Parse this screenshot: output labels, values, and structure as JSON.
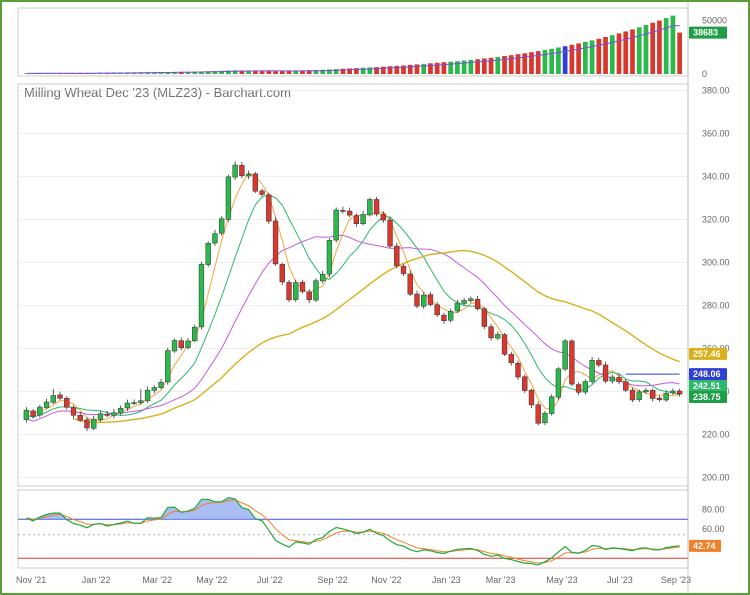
{
  "chart_data": {
    "type": "candlestick",
    "title": "Milling Wheat Dec '23 (MLZ23) - Barchart.com",
    "x_labels": [
      "Nov '21",
      "Jan '22",
      "Mar '22",
      "May '22",
      "Jul '22",
      "Sep '22",
      "Nov '22",
      "Jan '23",
      "Mar '23",
      "May '23",
      "Jul '23",
      "Sep '23"
    ],
    "price_axis": {
      "ylim": [
        196,
        383
      ],
      "ticks": [
        "200.00",
        "220.00",
        "240.00",
        "260.00",
        "280.00",
        "300.00",
        "320.00",
        "340.00",
        "360.00",
        "380.00"
      ]
    },
    "volume_axis": {
      "ylim": [
        0,
        58000
      ],
      "ticks": [
        "0",
        "50000"
      ]
    },
    "oscillator_axis": {
      "ylim": [
        20,
        100
      ],
      "ticks": [
        "80.00",
        "60.00"
      ],
      "upper_level": 70,
      "lower_level": 30
    },
    "weeks": 98,
    "candles": {
      "open": [
        226.9,
        230.9,
        229.0,
        232.5,
        234.9,
        238.4,
        236.8,
        232.4,
        228.9,
        226.8,
        222.8,
        226.9,
        229.3,
        228.8,
        229.9,
        232.3,
        234.6,
        234.8,
        235.6,
        240.5,
        241.7,
        244.4,
        258.8,
        263.6,
        260.4,
        263.6,
        270.0,
        299.0,
        309.0,
        313.6,
        320.0,
        339.7,
        345.2,
        340.2,
        341.2,
        333.3,
        331.4,
        319.3,
        299.1,
        290.7,
        282.7,
        290.8,
        286.3,
        282.5,
        291.4,
        294.6,
        310.4,
        324.2,
        323.9,
        321.8,
        318.0,
        322.1,
        329.3,
        322.5,
        319.7,
        307.6,
        298.3,
        294.6,
        285.3,
        279.6,
        285.0,
        280.3,
        275.5,
        273.1,
        277.4,
        280.9,
        282.2,
        282.9,
        278.4,
        270.1,
        264.8,
        266.4,
        257.2,
        253.1,
        246.8,
        240.6,
        233.8,
        225.4,
        229.7,
        237.3,
        250.4,
        263.5,
        243.2,
        239.7,
        244.6,
        254.4,
        252.3,
        244.8,
        246.5,
        244.5,
        240.6,
        236.1,
        239.8,
        240.5,
        236.9,
        236.0,
        239.3,
        240.2
      ],
      "close": [
        231.3,
        228.5,
        232.7,
        235.1,
        238.1,
        236.8,
        232.6,
        228.9,
        226.6,
        223.0,
        227.1,
        229.6,
        229.2,
        230.1,
        232.2,
        234.6,
        234.8,
        235.7,
        240.6,
        241.8,
        244.3,
        259.0,
        263.7,
        260.3,
        263.5,
        269.9,
        299.1,
        308.9,
        313.4,
        320.3,
        339.8,
        345.3,
        340.3,
        341.1,
        333.1,
        331.6,
        319.2,
        299.3,
        290.9,
        282.6,
        290.6,
        286.5,
        282.6,
        291.5,
        294.5,
        310.3,
        324.4,
        323.8,
        322.0,
        318.0,
        322.3,
        329.3,
        322.5,
        319.7,
        307.6,
        298.4,
        294.8,
        285.2,
        279.7,
        284.8,
        280.4,
        275.6,
        272.9,
        277.3,
        281.1,
        282.3,
        283.1,
        278.4,
        270.2,
        264.9,
        266.5,
        257.3,
        253.3,
        246.7,
        240.4,
        233.7,
        225.2,
        229.9,
        237.5,
        250.5,
        263.5,
        243.4,
        239.6,
        244.6,
        254.5,
        252.3,
        244.8,
        246.7,
        244.5,
        240.5,
        236.0,
        239.8,
        240.6,
        236.7,
        236.1,
        239.2,
        240.2,
        238.75
      ],
      "high": [
        232.7,
        231.8,
        233.7,
        236.6,
        241.2,
        239.9,
        237.8,
        233.6,
        230.5,
        227.9,
        228.7,
        231.1,
        230.9,
        231.8,
        233.5,
        236.2,
        236.3,
        241.1,
        242.3,
        242.9,
        245.9,
        260.4,
        264.7,
        265.0,
        264.8,
        271.1,
        300.3,
        309.9,
        315.2,
        321.4,
        340.8,
        347.0,
        346.7,
        342.7,
        342.1,
        334.3,
        332.5,
        321.0,
        299.9,
        291.8,
        292.0,
        291.9,
        287.6,
        292.7,
        296.1,
        311.3,
        325.6,
        325.9,
        325.5,
        322.7,
        323.9,
        330.1,
        330.5,
        323.8,
        321.3,
        309.1,
        299.2,
        296.1,
        286.8,
        286.1,
        286.3,
        281.6,
        276.6,
        278.5,
        282.6,
        283.5,
        284.2,
        284.4,
        279.3,
        271.5,
        267.9,
        267.2,
        258.4,
        254.4,
        247.9,
        241.3,
        235.3,
        230.9,
        238.7,
        251.3,
        264.4,
        264.3,
        244.3,
        245.6,
        256.0,
        255.6,
        253.9,
        247.9,
        248.2,
        245.9,
        241.7,
        240.9,
        241.6,
        241.4,
        238.1,
        240.4,
        241.4,
        241.2
      ],
      "low": [
        225.5,
        227.4,
        227.9,
        231.7,
        234.1,
        235.9,
        231.6,
        227.3,
        225.9,
        221.5,
        221.9,
        225.9,
        228.1,
        227.5,
        229.0,
        231.0,
        233.7,
        233.7,
        234.6,
        239.1,
        241.1,
        243.1,
        257.9,
        259.0,
        259.5,
        262.9,
        268.8,
        297.9,
        307.8,
        312.5,
        318.9,
        338.4,
        339.2,
        338.8,
        332.3,
        330.7,
        318.0,
        298.4,
        289.6,
        281.6,
        281.6,
        285.5,
        281.1,
        281.6,
        290.2,
        293.1,
        309.2,
        322.8,
        321.1,
        316.5,
        317.2,
        321.4,
        321.4,
        318.4,
        306.6,
        297.3,
        293.7,
        284.4,
        278.6,
        278.4,
        279.6,
        274.7,
        271.4,
        272.1,
        276.4,
        279.9,
        281.1,
        277.6,
        269.0,
        263.6,
        263.8,
        256.5,
        252.0,
        245.4,
        239.3,
        232.2,
        224.3,
        224.4,
        228.8,
        236.1,
        249.4,
        242.4,
        238.3,
        238.6,
        243.6,
        251.3,
        243.8,
        243.6,
        243.4,
        239.7,
        235.0,
        235.1,
        238.9,
        235.3,
        235.2,
        235.2,
        238.4,
        237.6
      ]
    },
    "volume": [
      600,
      550,
      700,
      650,
      800,
      750,
      900,
      850,
      700,
      1000,
      950,
      1100,
      1000,
      1200,
      1300,
      1250,
      1400,
      1500,
      1600,
      1550,
      1700,
      1800,
      1900,
      2000,
      2100,
      2200,
      2400,
      2600,
      2800,
      3000,
      3300,
      3500,
      3200,
      3000,
      2800,
      2700,
      2600,
      2500,
      2700,
      2900,
      3100,
      3300,
      3500,
      3800,
      4000,
      4300,
      4600,
      4900,
      5200,
      5500,
      5800,
      6100,
      6400,
      6800,
      7200,
      7600,
      8000,
      8500,
      9000,
      9500,
      10000,
      10500,
      11000,
      11500,
      12000,
      12600,
      13200,
      13800,
      14500,
      15200,
      16000,
      16800,
      17600,
      18500,
      19400,
      20400,
      21400,
      22500,
      23600,
      24800,
      26000,
      27300,
      28600,
      30000,
      31500,
      33000,
      34600,
      36300,
      38000,
      39800,
      41700,
      43700,
      45800,
      47900,
      50000,
      52300,
      54600,
      38683
    ],
    "moving_averages": [
      {
        "color": "#f5a442",
        "last": 238.75
      },
      {
        "color": "#2ab86a",
        "last": 242.51
      },
      {
        "color": "#c65be0",
        "last": 248.06
      },
      {
        "color": "#d8b01a",
        "last": 257.46
      }
    ],
    "oscillator": [
      71.4,
      68.3,
      72.2,
      74.9,
      76.3,
      76.3,
      69.6,
      65.5,
      64.0,
      61.3,
      64.8,
      65.6,
      63.0,
      64.7,
      66.2,
      68.0,
      65.8,
      65.8,
      71.6,
      71.1,
      71.7,
      82.2,
      82.5,
      77.0,
      78.4,
      81.2,
      90.5,
      90.5,
      87.9,
      88.0,
      92.2,
      90.7,
      82.0,
      80.0,
      70.7,
      68.4,
      58.8,
      48.3,
      44.5,
      41.3,
      46.8,
      45.7,
      44.4,
      49.3,
      51.1,
      57.4,
      61.5,
      60.1,
      58.2,
      55.3,
      56.7,
      59.7,
      55.4,
      53.3,
      47.9,
      43.9,
      42.5,
      38.8,
      36.6,
      38.7,
      37.6,
      35.9,
      34.9,
      37.3,
      39.2,
      39.7,
      40.0,
      37.9,
      34.1,
      32.0,
      33.2,
      29.8,
      28.6,
      26.7,
      25.0,
      24.6,
      23.2,
      26.4,
      30.4,
      36.5,
      42.0,
      36.0,
      35.2,
      37.9,
      43.0,
      42.4,
      38.9,
      40.6,
      40.0,
      38.9,
      37.8,
      40.1,
      40.7,
      38.8,
      38.6,
      40.9,
      41.9,
      42.74
    ],
    "price_tags": [
      {
        "label": "257.46",
        "value": 257.46,
        "color": "#d8b01a"
      },
      {
        "label": "248.06",
        "value": 248.06,
        "color": "#2f3fd6"
      },
      {
        "label": "242.51",
        "value": 242.51,
        "color": "#2ab86a"
      },
      {
        "label": "238.75",
        "value": 238.75,
        "color": "#1e9e46"
      }
    ],
    "volume_tag": {
      "label": "38683",
      "value": 38683,
      "color": "#1e9e46"
    },
    "oscillator_tag": {
      "label": "42.74",
      "value": 42.74,
      "color": "#f07f2a"
    },
    "colors": {
      "up": "#2db84d",
      "down": "#d9382e",
      "axis": "#aaaaaa",
      "grid": "#e6e6e6",
      "frame": "#5a9e3a"
    }
  }
}
